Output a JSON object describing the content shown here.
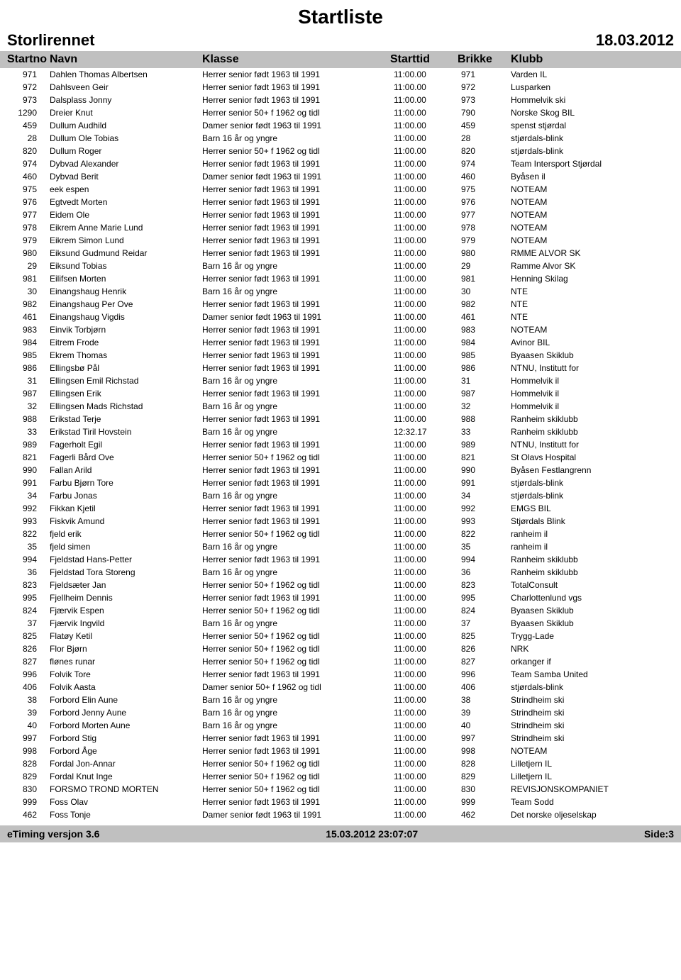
{
  "title": "Startliste",
  "event_name": "Storlirennet",
  "event_date": "18.03.2012",
  "headers": {
    "startno": "Startno",
    "navn": "Navn",
    "klasse": "Klasse",
    "starttid": "Starttid",
    "brikke": "Brikke",
    "klubb": "Klubb"
  },
  "footer": {
    "left": "eTiming versjon 3.6",
    "center": "15.03.2012 23:07:07",
    "right": "Side:3"
  },
  "colors": {
    "header_bg": "#c0c0c0",
    "text": "#000000",
    "page_bg": "#ffffff"
  },
  "rows": [
    {
      "startno": "971",
      "navn": "Dahlen Thomas Albertsen",
      "klasse": "Herrer senior født 1963 til 1991",
      "starttid": "11:00.00",
      "brikke": "971",
      "klubb": "Varden IL"
    },
    {
      "startno": "972",
      "navn": "Dahlsveen Geir",
      "klasse": "Herrer senior født 1963 til 1991",
      "starttid": "11:00.00",
      "brikke": "972",
      "klubb": "Lusparken"
    },
    {
      "startno": "973",
      "navn": "Dalsplass Jonny",
      "klasse": "Herrer senior født 1963 til 1991",
      "starttid": "11:00.00",
      "brikke": "973",
      "klubb": "Hommelvik ski"
    },
    {
      "startno": "1290",
      "navn": "Dreier Knut",
      "klasse": "Herrer senior 50+ f 1962 og tidl",
      "starttid": "11:00.00",
      "brikke": "790",
      "klubb": "Norske Skog BIL"
    },
    {
      "startno": "459",
      "navn": "Dullum Audhild",
      "klasse": "Damer senior født 1963 til 1991",
      "starttid": "11:00.00",
      "brikke": "459",
      "klubb": "spenst stjørdal"
    },
    {
      "startno": "28",
      "navn": "Dullum Ole Tobias",
      "klasse": "Barn 16 år og yngre",
      "starttid": "11:00.00",
      "brikke": "28",
      "klubb": "stjørdals-blink"
    },
    {
      "startno": "820",
      "navn": "Dullum Roger",
      "klasse": "Herrer senior 50+ f 1962 og tidl",
      "starttid": "11:00.00",
      "brikke": "820",
      "klubb": "stjørdals-blink"
    },
    {
      "startno": "974",
      "navn": "Dybvad Alexander",
      "klasse": "Herrer senior født 1963 til 1991",
      "starttid": "11:00.00",
      "brikke": "974",
      "klubb": "Team Intersport Stjørdal"
    },
    {
      "startno": "460",
      "navn": "Dybvad Berit",
      "klasse": "Damer senior født 1963 til 1991",
      "starttid": "11:00.00",
      "brikke": "460",
      "klubb": "Byåsen il"
    },
    {
      "startno": "975",
      "navn": "eek espen",
      "klasse": "Herrer senior født 1963 til 1991",
      "starttid": "11:00.00",
      "brikke": "975",
      "klubb": "NOTEAM"
    },
    {
      "startno": "976",
      "navn": "Egtvedt Morten",
      "klasse": "Herrer senior født 1963 til 1991",
      "starttid": "11:00.00",
      "brikke": "976",
      "klubb": "NOTEAM"
    },
    {
      "startno": "977",
      "navn": "Eidem Ole",
      "klasse": "Herrer senior født 1963 til 1991",
      "starttid": "11:00.00",
      "brikke": "977",
      "klubb": "NOTEAM"
    },
    {
      "startno": "978",
      "navn": "Eikrem Anne Marie Lund",
      "klasse": "Herrer senior født 1963 til 1991",
      "starttid": "11:00.00",
      "brikke": "978",
      "klubb": "NOTEAM"
    },
    {
      "startno": "979",
      "navn": "Eikrem Simon Lund",
      "klasse": "Herrer senior født 1963 til 1991",
      "starttid": "11:00.00",
      "brikke": "979",
      "klubb": "NOTEAM"
    },
    {
      "startno": "980",
      "navn": "Eiksund Gudmund Reidar",
      "klasse": "Herrer senior født 1963 til 1991",
      "starttid": "11:00.00",
      "brikke": "980",
      "klubb": "RMME ALVOR SK"
    },
    {
      "startno": "29",
      "navn": "Eiksund Tobias",
      "klasse": "Barn 16 år og yngre",
      "starttid": "11:00.00",
      "brikke": "29",
      "klubb": "Ramme Alvor SK"
    },
    {
      "startno": "981",
      "navn": "Eilifsen Morten",
      "klasse": "Herrer senior født 1963 til 1991",
      "starttid": "11:00.00",
      "brikke": "981",
      "klubb": "Henning Skilag"
    },
    {
      "startno": "30",
      "navn": "Einangshaug Henrik",
      "klasse": "Barn 16 år og yngre",
      "starttid": "11:00.00",
      "brikke": "30",
      "klubb": "NTE"
    },
    {
      "startno": "982",
      "navn": "Einangshaug Per Ove",
      "klasse": "Herrer senior født 1963 til 1991",
      "starttid": "11:00.00",
      "brikke": "982",
      "klubb": "NTE"
    },
    {
      "startno": "461",
      "navn": "Einangshaug Vigdis",
      "klasse": "Damer senior født 1963 til 1991",
      "starttid": "11:00.00",
      "brikke": "461",
      "klubb": "NTE"
    },
    {
      "startno": "983",
      "navn": "Einvik Torbjørn",
      "klasse": "Herrer senior født 1963 til 1991",
      "starttid": "11:00.00",
      "brikke": "983",
      "klubb": "NOTEAM"
    },
    {
      "startno": "984",
      "navn": "Eitrem Frode",
      "klasse": "Herrer senior født 1963 til 1991",
      "starttid": "11:00.00",
      "brikke": "984",
      "klubb": "Avinor BIL"
    },
    {
      "startno": "985",
      "navn": "Ekrem Thomas",
      "klasse": "Herrer senior født 1963 til 1991",
      "starttid": "11:00.00",
      "brikke": "985",
      "klubb": "Byaasen Skiklub"
    },
    {
      "startno": "986",
      "navn": "Ellingsbø Pål",
      "klasse": "Herrer senior født 1963 til 1991",
      "starttid": "11:00.00",
      "brikke": "986",
      "klubb": "NTNU, Institutt for"
    },
    {
      "startno": "31",
      "navn": "Ellingsen Emil Richstad",
      "klasse": "Barn 16 år og yngre",
      "starttid": "11:00.00",
      "brikke": "31",
      "klubb": "Hommelvik il"
    },
    {
      "startno": "987",
      "navn": "Ellingsen Erik",
      "klasse": "Herrer senior født 1963 til 1991",
      "starttid": "11:00.00",
      "brikke": "987",
      "klubb": "Hommelvik il"
    },
    {
      "startno": "32",
      "navn": "Ellingsen Mads Richstad",
      "klasse": "Barn 16 år og yngre",
      "starttid": "11:00.00",
      "brikke": "32",
      "klubb": "Hommelvik il"
    },
    {
      "startno": "988",
      "navn": "Erikstad Terje",
      "klasse": "Herrer senior født 1963 til 1991",
      "starttid": "11:00.00",
      "brikke": "988",
      "klubb": "Ranheim skiklubb"
    },
    {
      "startno": "33",
      "navn": "Erikstad Tiril Hovstein",
      "klasse": "Barn 16 år og yngre",
      "starttid": "12:32.17",
      "brikke": "33",
      "klubb": "Ranheim skiklubb"
    },
    {
      "startno": "989",
      "navn": "Fagerholt Egil",
      "klasse": "Herrer senior født 1963 til 1991",
      "starttid": "11:00.00",
      "brikke": "989",
      "klubb": "NTNU, Institutt for"
    },
    {
      "startno": "821",
      "navn": "Fagerli Bård Ove",
      "klasse": "Herrer senior 50+ f 1962 og tidl",
      "starttid": "11:00.00",
      "brikke": "821",
      "klubb": "St Olavs Hospital"
    },
    {
      "startno": "990",
      "navn": "Fallan Arild",
      "klasse": "Herrer senior født 1963 til 1991",
      "starttid": "11:00.00",
      "brikke": "990",
      "klubb": "Byåsen Festlangrenn"
    },
    {
      "startno": "991",
      "navn": "Farbu Bjørn Tore",
      "klasse": "Herrer senior født 1963 til 1991",
      "starttid": "11:00.00",
      "brikke": "991",
      "klubb": "stjørdals-blink"
    },
    {
      "startno": "34",
      "navn": "Farbu Jonas",
      "klasse": "Barn 16 år og yngre",
      "starttid": "11:00.00",
      "brikke": "34",
      "klubb": "stjørdals-blink"
    },
    {
      "startno": "992",
      "navn": "Fikkan Kjetil",
      "klasse": "Herrer senior født 1963 til 1991",
      "starttid": "11:00.00",
      "brikke": "992",
      "klubb": "EMGS BIL"
    },
    {
      "startno": "993",
      "navn": "Fiskvik Amund",
      "klasse": "Herrer senior født 1963 til 1991",
      "starttid": "11:00.00",
      "brikke": "993",
      "klubb": "Stjørdals Blink"
    },
    {
      "startno": "822",
      "navn": "fjeld erik",
      "klasse": "Herrer senior 50+ f 1962 og tidl",
      "starttid": "11:00.00",
      "brikke": "822",
      "klubb": "ranheim il"
    },
    {
      "startno": "35",
      "navn": "fjeld simen",
      "klasse": "Barn 16 år og yngre",
      "starttid": "11:00.00",
      "brikke": "35",
      "klubb": "ranheim il"
    },
    {
      "startno": "994",
      "navn": "Fjeldstad Hans-Petter",
      "klasse": "Herrer senior født 1963 til 1991",
      "starttid": "11:00.00",
      "brikke": "994",
      "klubb": "Ranheim skiklubb"
    },
    {
      "startno": "36",
      "navn": "Fjeldstad Tora Storeng",
      "klasse": "Barn 16 år og yngre",
      "starttid": "11:00.00",
      "brikke": "36",
      "klubb": "Ranheim skiklubb"
    },
    {
      "startno": "823",
      "navn": "Fjeldsæter Jan",
      "klasse": "Herrer senior 50+ f 1962 og tidl",
      "starttid": "11:00.00",
      "brikke": "823",
      "klubb": "TotalConsult"
    },
    {
      "startno": "995",
      "navn": "Fjellheim Dennis",
      "klasse": "Herrer senior født 1963 til 1991",
      "starttid": "11:00.00",
      "brikke": "995",
      "klubb": "Charlottenlund vgs"
    },
    {
      "startno": "824",
      "navn": "Fjærvik Espen",
      "klasse": "Herrer senior 50+ f 1962 og tidl",
      "starttid": "11:00.00",
      "brikke": "824",
      "klubb": "Byaasen Skiklub"
    },
    {
      "startno": "37",
      "navn": "Fjærvik Ingvild",
      "klasse": "Barn 16 år og yngre",
      "starttid": "11:00.00",
      "brikke": "37",
      "klubb": "Byaasen Skiklub"
    },
    {
      "startno": "825",
      "navn": "Flatøy Ketil",
      "klasse": "Herrer senior 50+ f 1962 og tidl",
      "starttid": "11:00.00",
      "brikke": "825",
      "klubb": "Trygg-Lade"
    },
    {
      "startno": "826",
      "navn": "Flor Bjørn",
      "klasse": "Herrer senior 50+ f 1962 og tidl",
      "starttid": "11:00.00",
      "brikke": "826",
      "klubb": "NRK"
    },
    {
      "startno": "827",
      "navn": "flønes runar",
      "klasse": "Herrer senior 50+ f 1962 og tidl",
      "starttid": "11:00.00",
      "brikke": "827",
      "klubb": "orkanger if"
    },
    {
      "startno": "996",
      "navn": "Folvik Tore",
      "klasse": "Herrer senior født 1963 til 1991",
      "starttid": "11:00.00",
      "brikke": "996",
      "klubb": "Team Samba United"
    },
    {
      "startno": "406",
      "navn": "Folvik Aasta",
      "klasse": "Damer senior 50+ f 1962 og tidl",
      "starttid": "11:00.00",
      "brikke": "406",
      "klubb": "stjørdals-blink"
    },
    {
      "startno": "38",
      "navn": "Forbord Elin Aune",
      "klasse": "Barn 16 år og yngre",
      "starttid": "11:00.00",
      "brikke": "38",
      "klubb": "Strindheim ski"
    },
    {
      "startno": "39",
      "navn": "Forbord Jenny Aune",
      "klasse": "Barn 16 år og yngre",
      "starttid": "11:00.00",
      "brikke": "39",
      "klubb": "Strindheim ski"
    },
    {
      "startno": "40",
      "navn": "Forbord Morten Aune",
      "klasse": "Barn 16 år og yngre",
      "starttid": "11:00.00",
      "brikke": "40",
      "klubb": "Strindheim ski"
    },
    {
      "startno": "997",
      "navn": "Forbord Stig",
      "klasse": "Herrer senior født 1963 til 1991",
      "starttid": "11:00.00",
      "brikke": "997",
      "klubb": "Strindheim ski"
    },
    {
      "startno": "998",
      "navn": "Forbord Åge",
      "klasse": "Herrer senior født 1963 til 1991",
      "starttid": "11:00.00",
      "brikke": "998",
      "klubb": "NOTEAM"
    },
    {
      "startno": "828",
      "navn": "Fordal Jon-Annar",
      "klasse": "Herrer senior 50+ f 1962 og tidl",
      "starttid": "11:00.00",
      "brikke": "828",
      "klubb": "Lilletjern IL"
    },
    {
      "startno": "829",
      "navn": "Fordal Knut Inge",
      "klasse": "Herrer senior 50+ f 1962 og tidl",
      "starttid": "11:00.00",
      "brikke": "829",
      "klubb": "Lilletjern IL"
    },
    {
      "startno": "830",
      "navn": "FORSMO TROND MORTEN",
      "klasse": "Herrer senior 50+ f 1962 og tidl",
      "starttid": "11:00.00",
      "brikke": "830",
      "klubb": "REVISJONSKOMPANIET"
    },
    {
      "startno": "999",
      "navn": "Foss Olav",
      "klasse": "Herrer senior født 1963 til 1991",
      "starttid": "11:00.00",
      "brikke": "999",
      "klubb": "Team Sodd"
    },
    {
      "startno": "462",
      "navn": "Foss Tonje",
      "klasse": "Damer senior født 1963 til 1991",
      "starttid": "11:00.00",
      "brikke": "462",
      "klubb": "Det norske oljeselskap"
    }
  ]
}
